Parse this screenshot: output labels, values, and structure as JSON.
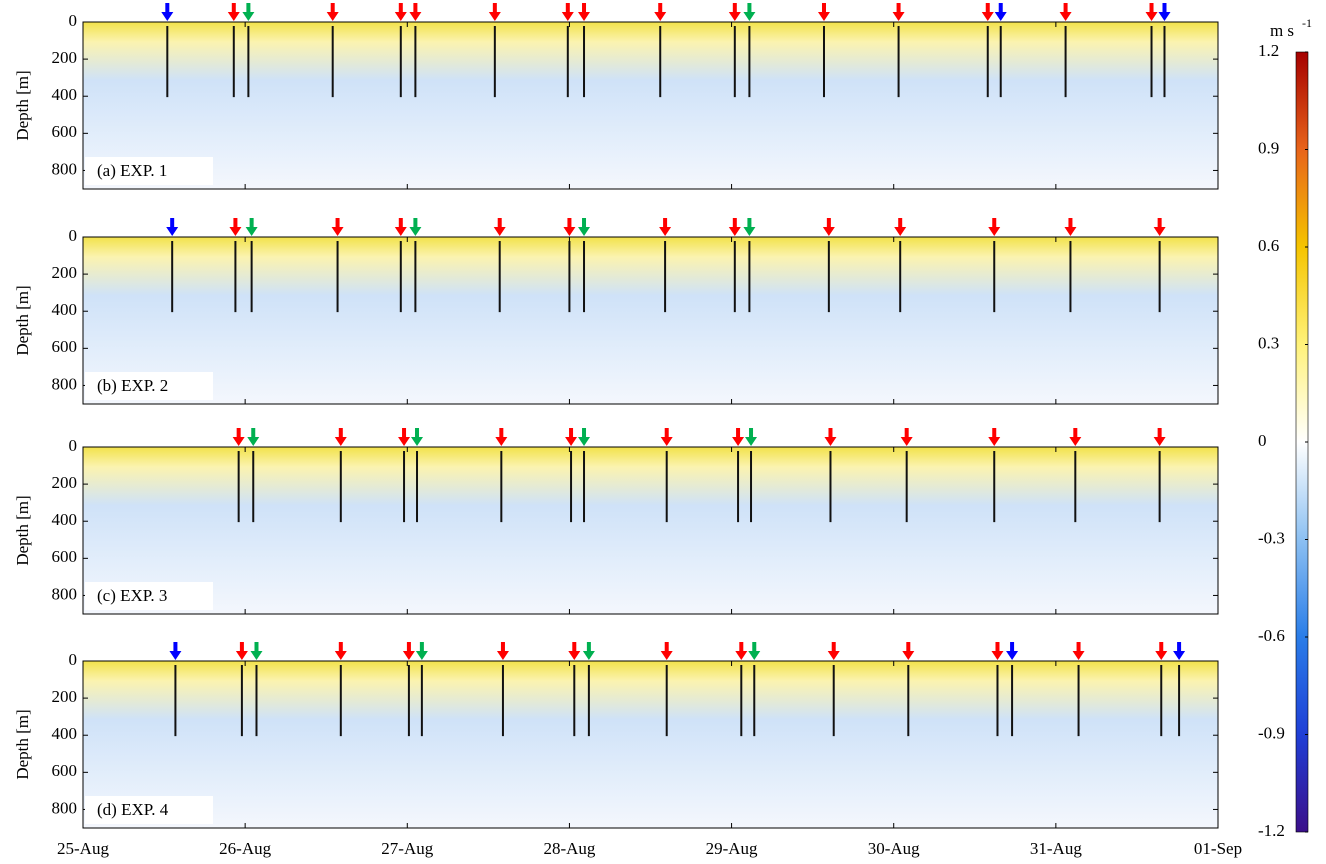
{
  "chart_data": [
    {
      "type": "contour",
      "ylabel": "Depth [m]",
      "panel_label": "(a) EXP. 1",
      "ylim": [
        0,
        900
      ],
      "yticks": [
        0,
        200,
        400,
        600,
        800
      ],
      "arrows": [
        {
          "x": 0.52,
          "color": "#0000ff"
        },
        {
          "x": 0.93,
          "color": "#ff0000"
        },
        {
          "x": 1.02,
          "color": "#00b050"
        },
        {
          "x": 1.54,
          "color": "#ff0000"
        },
        {
          "x": 1.96,
          "color": "#ff0000"
        },
        {
          "x": 2.05,
          "color": "#ff0000"
        },
        {
          "x": 2.54,
          "color": "#ff0000"
        },
        {
          "x": 2.99,
          "color": "#ff0000"
        },
        {
          "x": 3.09,
          "color": "#ff0000"
        },
        {
          "x": 3.56,
          "color": "#ff0000"
        },
        {
          "x": 4.02,
          "color": "#ff0000"
        },
        {
          "x": 4.11,
          "color": "#00b050"
        },
        {
          "x": 4.57,
          "color": "#ff0000"
        },
        {
          "x": 5.03,
          "color": "#ff0000"
        },
        {
          "x": 5.58,
          "color": "#ff0000"
        },
        {
          "x": 5.66,
          "color": "#0000ff"
        },
        {
          "x": 6.06,
          "color": "#ff0000"
        },
        {
          "x": 6.59,
          "color": "#ff0000"
        },
        {
          "x": 6.67,
          "color": "#0000ff"
        }
      ]
    },
    {
      "type": "contour",
      "ylabel": "Depth [m]",
      "panel_label": "(b) EXP. 2",
      "ylim": [
        0,
        900
      ],
      "yticks": [
        0,
        200,
        400,
        600,
        800
      ],
      "arrows": [
        {
          "x": 0.55,
          "color": "#0000ff"
        },
        {
          "x": 0.94,
          "color": "#ff0000"
        },
        {
          "x": 1.04,
          "color": "#00b050"
        },
        {
          "x": 1.57,
          "color": "#ff0000"
        },
        {
          "x": 1.96,
          "color": "#ff0000"
        },
        {
          "x": 2.05,
          "color": "#00b050"
        },
        {
          "x": 2.57,
          "color": "#ff0000"
        },
        {
          "x": 3.0,
          "color": "#ff0000"
        },
        {
          "x": 3.09,
          "color": "#00b050"
        },
        {
          "x": 3.59,
          "color": "#ff0000"
        },
        {
          "x": 4.02,
          "color": "#ff0000"
        },
        {
          "x": 4.11,
          "color": "#00b050"
        },
        {
          "x": 4.6,
          "color": "#ff0000"
        },
        {
          "x": 5.04,
          "color": "#ff0000"
        },
        {
          "x": 5.62,
          "color": "#ff0000"
        },
        {
          "x": 6.09,
          "color": "#ff0000"
        },
        {
          "x": 6.64,
          "color": "#ff0000"
        }
      ]
    },
    {
      "type": "contour",
      "ylabel": "Depth [m]",
      "panel_label": "(c) EXP. 3",
      "ylim": [
        0,
        900
      ],
      "yticks": [
        0,
        200,
        400,
        600,
        800
      ],
      "arrows": [
        {
          "x": 0.96,
          "color": "#ff0000"
        },
        {
          "x": 1.05,
          "color": "#00b050"
        },
        {
          "x": 1.59,
          "color": "#ff0000"
        },
        {
          "x": 1.98,
          "color": "#ff0000"
        },
        {
          "x": 2.06,
          "color": "#00b050"
        },
        {
          "x": 2.58,
          "color": "#ff0000"
        },
        {
          "x": 3.01,
          "color": "#ff0000"
        },
        {
          "x": 3.09,
          "color": "#00b050"
        },
        {
          "x": 3.6,
          "color": "#ff0000"
        },
        {
          "x": 4.04,
          "color": "#ff0000"
        },
        {
          "x": 4.12,
          "color": "#00b050"
        },
        {
          "x": 4.61,
          "color": "#ff0000"
        },
        {
          "x": 5.08,
          "color": "#ff0000"
        },
        {
          "x": 5.62,
          "color": "#ff0000"
        },
        {
          "x": 6.12,
          "color": "#ff0000"
        },
        {
          "x": 6.64,
          "color": "#ff0000"
        }
      ]
    },
    {
      "type": "contour",
      "ylabel": "Depth [m]",
      "panel_label": "(d) EXP. 4",
      "ylim": [
        0,
        900
      ],
      "yticks": [
        0,
        200,
        400,
        600,
        800
      ],
      "xlim": [
        0,
        7
      ],
      "xticks": [
        {
          "value": 0,
          "label": "25-Aug"
        },
        {
          "value": 1,
          "label": "26-Aug"
        },
        {
          "value": 2,
          "label": "27-Aug"
        },
        {
          "value": 3,
          "label": "28-Aug"
        },
        {
          "value": 4,
          "label": "29-Aug"
        },
        {
          "value": 5,
          "label": "30-Aug"
        },
        {
          "value": 6,
          "label": "31-Aug"
        },
        {
          "value": 7,
          "label": "01-Sep"
        }
      ],
      "arrows": [
        {
          "x": 0.57,
          "color": "#0000ff"
        },
        {
          "x": 0.98,
          "color": "#ff0000"
        },
        {
          "x": 1.07,
          "color": "#00b050"
        },
        {
          "x": 1.59,
          "color": "#ff0000"
        },
        {
          "x": 2.01,
          "color": "#ff0000"
        },
        {
          "x": 2.09,
          "color": "#00b050"
        },
        {
          "x": 2.59,
          "color": "#ff0000"
        },
        {
          "x": 3.03,
          "color": "#ff0000"
        },
        {
          "x": 3.12,
          "color": "#00b050"
        },
        {
          "x": 3.6,
          "color": "#ff0000"
        },
        {
          "x": 4.06,
          "color": "#ff0000"
        },
        {
          "x": 4.14,
          "color": "#00b050"
        },
        {
          "x": 4.63,
          "color": "#ff0000"
        },
        {
          "x": 5.09,
          "color": "#ff0000"
        },
        {
          "x": 5.64,
          "color": "#ff0000"
        },
        {
          "x": 5.73,
          "color": "#0000ff"
        },
        {
          "x": 6.14,
          "color": "#ff0000"
        },
        {
          "x": 6.65,
          "color": "#ff0000"
        },
        {
          "x": 6.76,
          "color": "#0000ff"
        }
      ]
    }
  ],
  "colorbar": {
    "unit": "m s",
    "unit_exponent": "-1",
    "lim": [
      -1.2,
      1.2
    ],
    "ticks": [
      1.2,
      0.9,
      0.6,
      0.3,
      0,
      -0.3,
      -0.6,
      -0.9,
      -1.2
    ],
    "colors": [
      "#3b0f8a",
      "#1f3fd6",
      "#2a7de8",
      "#8cc0f2",
      "#ffffff",
      "#fff27a",
      "#f5c400",
      "#e8641a",
      "#a50000"
    ]
  }
}
